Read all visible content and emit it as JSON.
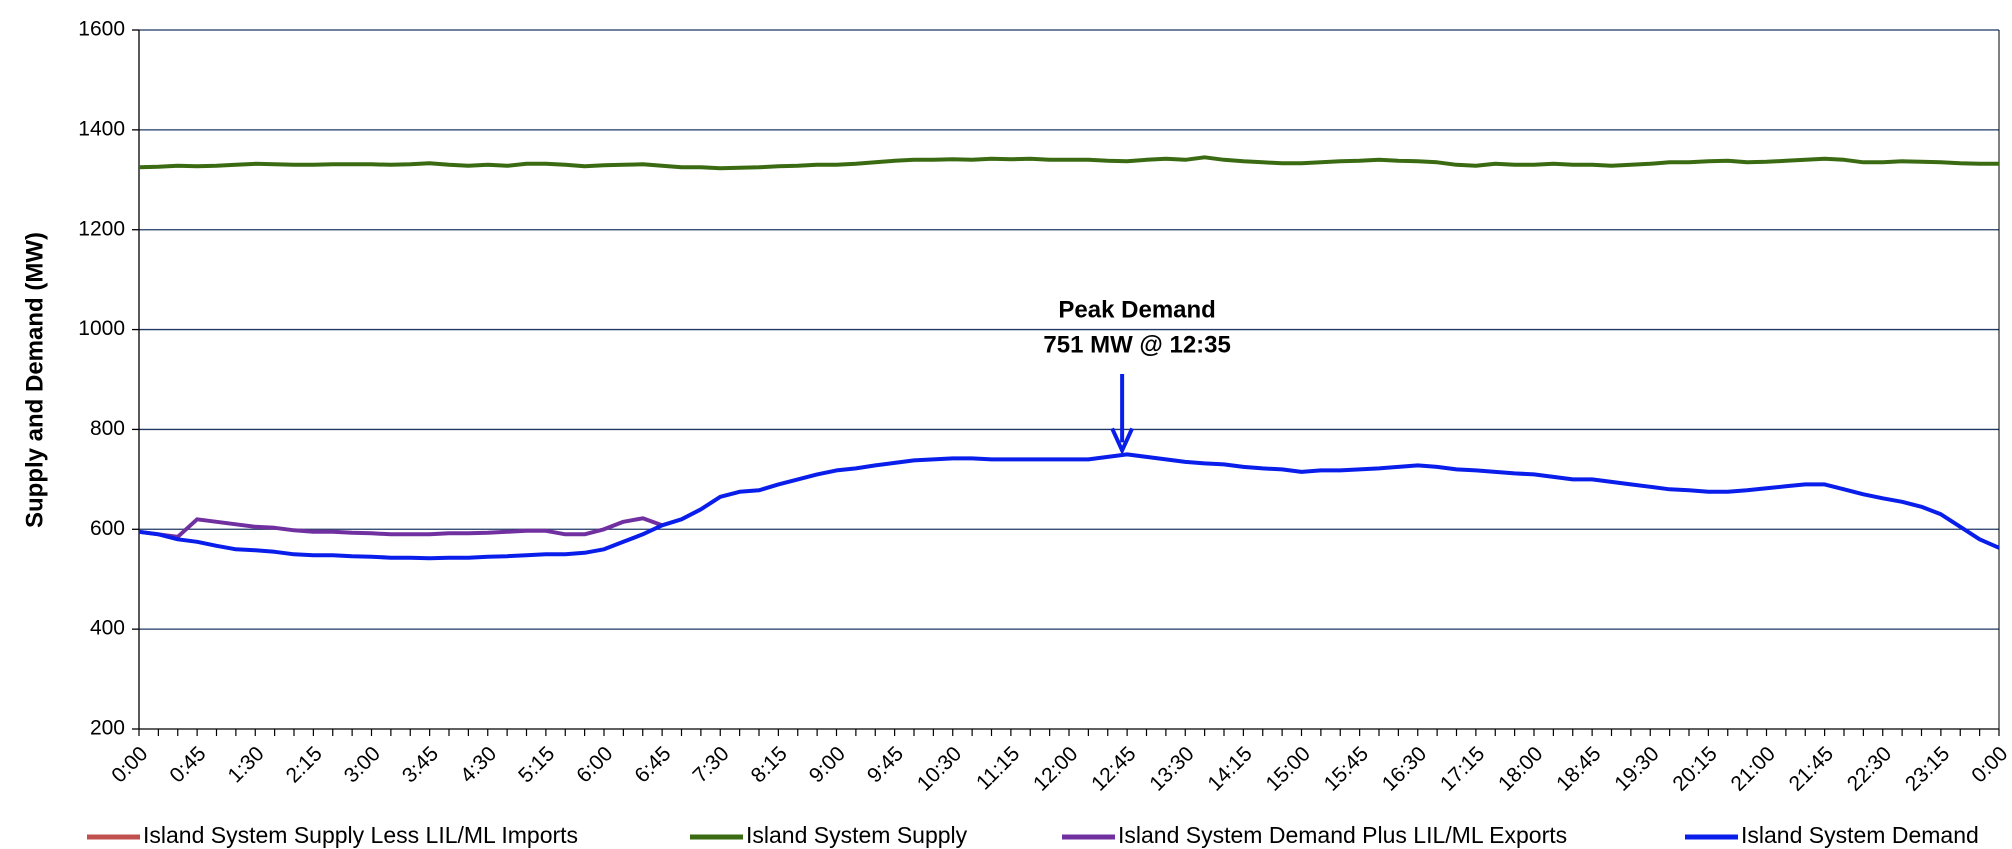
{
  "chart_data": {
    "type": "line",
    "ylabel": "Supply and Demand (MW)",
    "ylim": [
      200,
      1600
    ],
    "yticks": [
      200,
      400,
      600,
      800,
      1000,
      1200,
      1400,
      1600
    ],
    "grid": true,
    "annotations": [
      "Peak Demand",
      "751 MW @ 12:35"
    ],
    "categories": [
      "0:00",
      null,
      null,
      "0:45",
      null,
      null,
      "1:30",
      null,
      null,
      "2:15",
      null,
      null,
      "3:00",
      null,
      null,
      "3:45",
      null,
      null,
      "4:30",
      null,
      null,
      "5:15",
      null,
      null,
      "6:00",
      null,
      null,
      "6:45",
      null,
      null,
      "7:30",
      null,
      null,
      "8:15",
      null,
      null,
      "9:00",
      null,
      null,
      "9:45",
      null,
      null,
      "10:30",
      null,
      null,
      "11:15",
      null,
      null,
      "12:00",
      null,
      null,
      "12:45",
      null,
      null,
      "13:30",
      null,
      null,
      "14:15",
      null,
      null,
      "15:00",
      null,
      null,
      "15:45",
      null,
      null,
      "16:30",
      null,
      null,
      "17:15",
      null,
      null,
      "18:00",
      null,
      null,
      "18:45",
      null,
      null,
      "19:30",
      null,
      null,
      "20:15",
      null,
      null,
      "21:00",
      null,
      null,
      "21:45",
      null,
      null,
      "22:30",
      null,
      null,
      "23:15",
      null,
      null,
      "0:00"
    ],
    "series": [
      {
        "name": "Island System Supply Less LIL/ML Imports",
        "color": "#c0504d",
        "values": [
          null,
          null,
          null,
          null,
          null,
          null,
          null,
          null,
          null,
          null,
          null,
          null,
          null,
          null,
          null,
          null,
          null,
          null,
          null,
          null,
          null,
          null,
          null,
          null,
          null,
          null,
          null,
          null,
          null,
          null,
          null,
          null,
          null,
          null,
          null,
          null,
          null,
          null,
          null,
          null,
          null,
          null,
          null,
          null,
          null,
          null,
          null,
          null,
          null,
          null,
          null,
          null,
          null,
          null,
          null,
          null,
          null,
          null,
          null,
          null,
          null,
          null,
          null,
          null,
          null,
          null,
          null,
          null,
          null,
          null,
          null,
          null,
          null,
          null,
          null,
          null,
          null,
          null,
          null,
          null,
          null,
          null,
          null,
          null,
          null,
          null,
          null,
          null,
          null,
          null,
          null,
          null,
          null,
          null,
          null,
          null,
          null
        ]
      },
      {
        "name": "Island System Supply",
        "color": "#3a6b12",
        "values": [
          1325,
          1326,
          1328,
          1327,
          1328,
          1330,
          1332,
          1331,
          1330,
          1330,
          1331,
          1331,
          1331,
          1330,
          1331,
          1333,
          1330,
          1328,
          1330,
          1328,
          1332,
          1332,
          1330,
          1327,
          1329,
          1330,
          1331,
          1328,
          1325,
          1325,
          1323,
          1324,
          1325,
          1327,
          1328,
          1330,
          1330,
          1332,
          1335,
          1338,
          1340,
          1340,
          1341,
          1340,
          1342,
          1341,
          1342,
          1340,
          1340,
          1340,
          1338,
          1337,
          1340,
          1342,
          1340,
          1345,
          1340,
          1337,
          1335,
          1333,
          1333,
          1335,
          1337,
          1338,
          1340,
          1338,
          1337,
          1335,
          1330,
          1328,
          1332,
          1330,
          1330,
          1332,
          1330,
          1330,
          1328,
          1330,
          1332,
          1335,
          1335,
          1337,
          1338,
          1335,
          1336,
          1338,
          1340,
          1342,
          1340,
          1335,
          1335,
          1337,
          1336,
          1335,
          1333,
          1332,
          1332
        ]
      },
      {
        "name": "Island System Demand Plus LIL/ML Exports",
        "color": "#7030a0",
        "values": [
          595,
          590,
          585,
          620,
          615,
          610,
          605,
          603,
          598,
          595,
          595,
          593,
          592,
          590,
          590,
          590,
          592,
          592,
          593,
          595,
          597,
          597,
          590,
          590,
          600,
          615,
          622,
          608,
          null,
          null,
          null,
          null,
          null,
          null,
          null,
          null,
          null,
          null,
          null,
          null,
          null,
          null,
          null,
          null,
          null,
          null,
          null,
          null,
          null,
          null,
          null,
          null,
          null,
          null,
          null,
          null,
          null,
          null,
          null,
          null,
          null,
          null,
          null,
          null,
          null,
          null,
          null,
          null,
          null,
          null,
          null,
          null,
          null,
          null,
          null,
          null,
          null,
          null,
          null,
          null,
          null,
          null,
          null,
          null,
          null,
          null,
          null,
          null,
          null,
          null,
          null,
          null,
          null,
          null,
          null,
          null,
          null
        ]
      },
      {
        "name": "Island System Demand",
        "color": "#0a1eeb",
        "values": [
          595,
          590,
          580,
          575,
          567,
          560,
          558,
          555,
          550,
          548,
          548,
          546,
          545,
          543,
          543,
          542,
          543,
          543,
          545,
          546,
          548,
          550,
          550,
          553,
          560,
          575,
          590,
          608,
          620,
          640,
          665,
          675,
          678,
          690,
          700,
          710,
          718,
          722,
          728,
          733,
          738,
          740,
          742,
          742,
          740,
          740,
          740,
          740,
          740,
          740,
          745,
          750,
          745,
          740,
          735,
          732,
          730,
          725,
          722,
          720,
          715,
          718,
          718,
          720,
          722,
          725,
          728,
          725,
          720,
          718,
          715,
          712,
          710,
          705,
          700,
          700,
          695,
          690,
          685,
          680,
          678,
          675,
          675,
          678,
          682,
          686,
          690,
          690,
          680,
          670,
          662,
          655,
          645,
          630,
          605,
          580,
          563
        ]
      }
    ]
  }
}
